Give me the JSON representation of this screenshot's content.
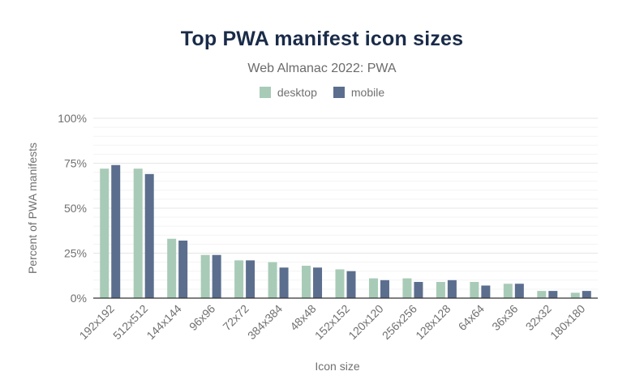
{
  "chart_data": {
    "type": "bar",
    "title": "Top PWA manifest icon sizes",
    "subtitle": "Web Almanac 2022: PWA",
    "xlabel": "Icon size",
    "ylabel": "Percent of PWA manifests",
    "ylim": [
      0,
      100
    ],
    "y_ticks": [
      "0%",
      "25%",
      "50%",
      "75%",
      "100%"
    ],
    "y_tick_values": [
      0,
      25,
      50,
      75,
      100
    ],
    "grid": true,
    "legend_position": "top-center",
    "categories": [
      "192x192",
      "512x512",
      "144x144",
      "96x96",
      "72x72",
      "384x384",
      "48x48",
      "152x152",
      "120x120",
      "256x256",
      "128x128",
      "64x64",
      "36x36",
      "32x32",
      "180x180"
    ],
    "series": [
      {
        "name": "desktop",
        "color": "#a8cbb7",
        "values": [
          72,
          72,
          33,
          24,
          21,
          20,
          18,
          16,
          11,
          11,
          9,
          9,
          8,
          4,
          3
        ]
      },
      {
        "name": "mobile",
        "color": "#5c6e8e",
        "values": [
          74,
          69,
          32,
          24,
          21,
          17,
          17,
          15,
          10,
          9,
          10,
          7,
          8,
          4,
          4
        ]
      }
    ]
  }
}
